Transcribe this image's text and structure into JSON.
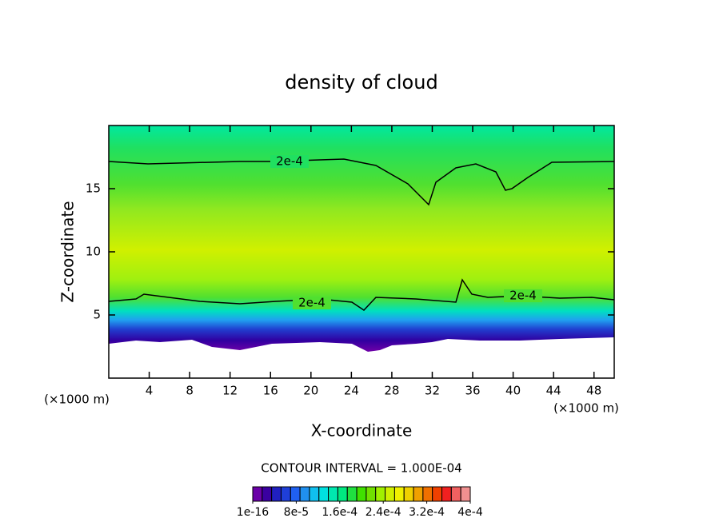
{
  "chart_data": {
    "type": "contour",
    "title": "density of cloud",
    "x_label": "X-coordinate",
    "y_label": "Z-coordinate",
    "x_unit": "(×1000 m)",
    "xlim": [
      0,
      50
    ],
    "ylim": [
      0,
      20
    ],
    "xticks": [
      4,
      8,
      12,
      16,
      20,
      24,
      28,
      32,
      36,
      40,
      44,
      48
    ],
    "yticks": [
      5,
      10,
      15
    ],
    "contour_label": "2e-4",
    "contour_interval": "CONTOUR INTERVAL = 1.000E-04",
    "colorbar": {
      "lim": [
        0,
        0.0004
      ],
      "ticks": [
        {
          "value": 1e-16,
          "label": "1e-16"
        },
        {
          "value": 8e-05,
          "label": "8e-5"
        },
        {
          "value": 0.00016,
          "label": "1.6e-4"
        },
        {
          "value": 0.00024,
          "label": "2.4e-4"
        },
        {
          "value": 0.00032,
          "label": "3.2e-4"
        },
        {
          "value": 0.0004,
          "label": "4e-4"
        }
      ],
      "colors": [
        "#6a00a8",
        "#3a00a0",
        "#2020c0",
        "#1f3fd8",
        "#2060f0",
        "#2090f0",
        "#10c0f0",
        "#00e0e0",
        "#00e8b0",
        "#00e880",
        "#20e040",
        "#40e000",
        "#70e000",
        "#a0f000",
        "#d0f000",
        "#f0f000",
        "#f0d000",
        "#f0a000",
        "#f07000",
        "#f04000",
        "#f02020",
        "#f06060",
        "#f09090"
      ]
    }
  }
}
